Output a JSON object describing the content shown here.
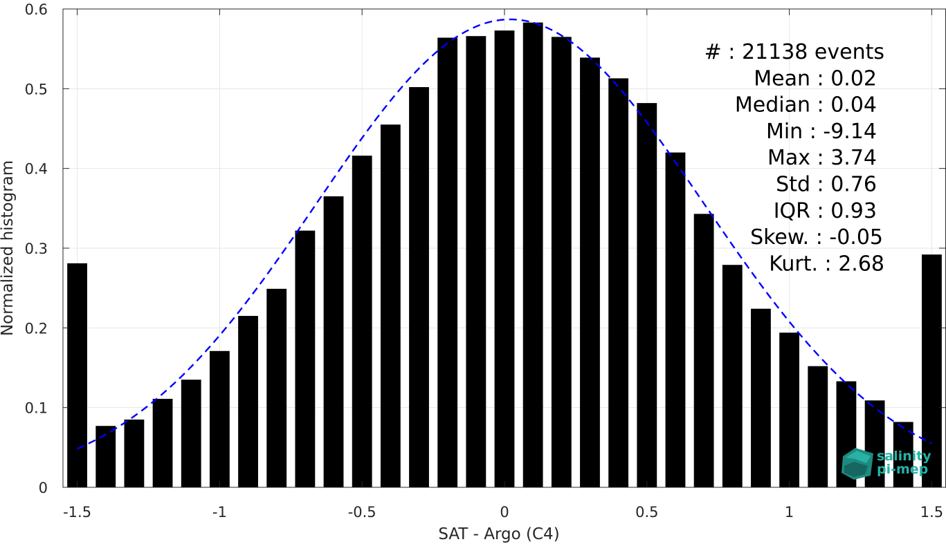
{
  "chart_data": {
    "type": "bar",
    "xlabel": "SAT - Argo (C4)",
    "ylabel": "Normalized histogram",
    "xlim": [
      -1.55,
      1.55
    ],
    "ylim": [
      0,
      0.6
    ],
    "xticks": [
      -1.5,
      -1,
      -0.5,
      0,
      0.5,
      1,
      1.5
    ],
    "xtick_labels": [
      "-1.5",
      "-1",
      "-0.5",
      "0",
      "0.5",
      "1",
      "1.5"
    ],
    "yticks": [
      0,
      0.1,
      0.2,
      0.3,
      0.4,
      0.5,
      0.6
    ],
    "ytick_labels": [
      "0",
      "0.1",
      "0.2",
      "0.3",
      "0.4",
      "0.5",
      "0.6"
    ],
    "grid": true,
    "bar_width": 0.07,
    "bar_color": "#000000",
    "bars": [
      {
        "x": -1.5,
        "y": 0.281
      },
      {
        "x": -1.4,
        "y": 0.077
      },
      {
        "x": -1.3,
        "y": 0.085
      },
      {
        "x": -1.2,
        "y": 0.111
      },
      {
        "x": -1.1,
        "y": 0.135
      },
      {
        "x": -1.0,
        "y": 0.171
      },
      {
        "x": -0.9,
        "y": 0.215
      },
      {
        "x": -0.8,
        "y": 0.249
      },
      {
        "x": -0.7,
        "y": 0.322
      },
      {
        "x": -0.6,
        "y": 0.365
      },
      {
        "x": -0.5,
        "y": 0.416
      },
      {
        "x": -0.4,
        "y": 0.455
      },
      {
        "x": -0.3,
        "y": 0.502
      },
      {
        "x": -0.2,
        "y": 0.564
      },
      {
        "x": -0.1,
        "y": 0.566
      },
      {
        "x": 0.0,
        "y": 0.573
      },
      {
        "x": 0.1,
        "y": 0.583
      },
      {
        "x": 0.2,
        "y": 0.565
      },
      {
        "x": 0.3,
        "y": 0.539
      },
      {
        "x": 0.4,
        "y": 0.513
      },
      {
        "x": 0.5,
        "y": 0.482
      },
      {
        "x": 0.6,
        "y": 0.42
      },
      {
        "x": 0.7,
        "y": 0.343
      },
      {
        "x": 0.8,
        "y": 0.279
      },
      {
        "x": 0.9,
        "y": 0.224
      },
      {
        "x": 1.0,
        "y": 0.194
      },
      {
        "x": 1.1,
        "y": 0.152
      },
      {
        "x": 1.2,
        "y": 0.133
      },
      {
        "x": 1.3,
        "y": 0.109
      },
      {
        "x": 1.4,
        "y": 0.082
      },
      {
        "x": 1.5,
        "y": 0.292
      }
    ],
    "gaussian_fit": {
      "mean": 0.02,
      "std": 0.68,
      "peak": 0.587,
      "x_range": [
        -1.5,
        1.5
      ],
      "color": "#0000ff",
      "style": "dashed"
    },
    "annotations": [
      "#  : 21138 events",
      "Mean : 0.02",
      "Median : 0.04",
      "Min : -9.14",
      "Max : 3.74",
      "Std : 0.76",
      "IQR : 0.93",
      "Skew. : -0.05",
      "Kurt. : 2.68"
    ]
  },
  "logo": {
    "line1": "salinity",
    "line2": "pi-mep",
    "icon_name": "cube-logo-icon",
    "color": "#22b3a6"
  }
}
